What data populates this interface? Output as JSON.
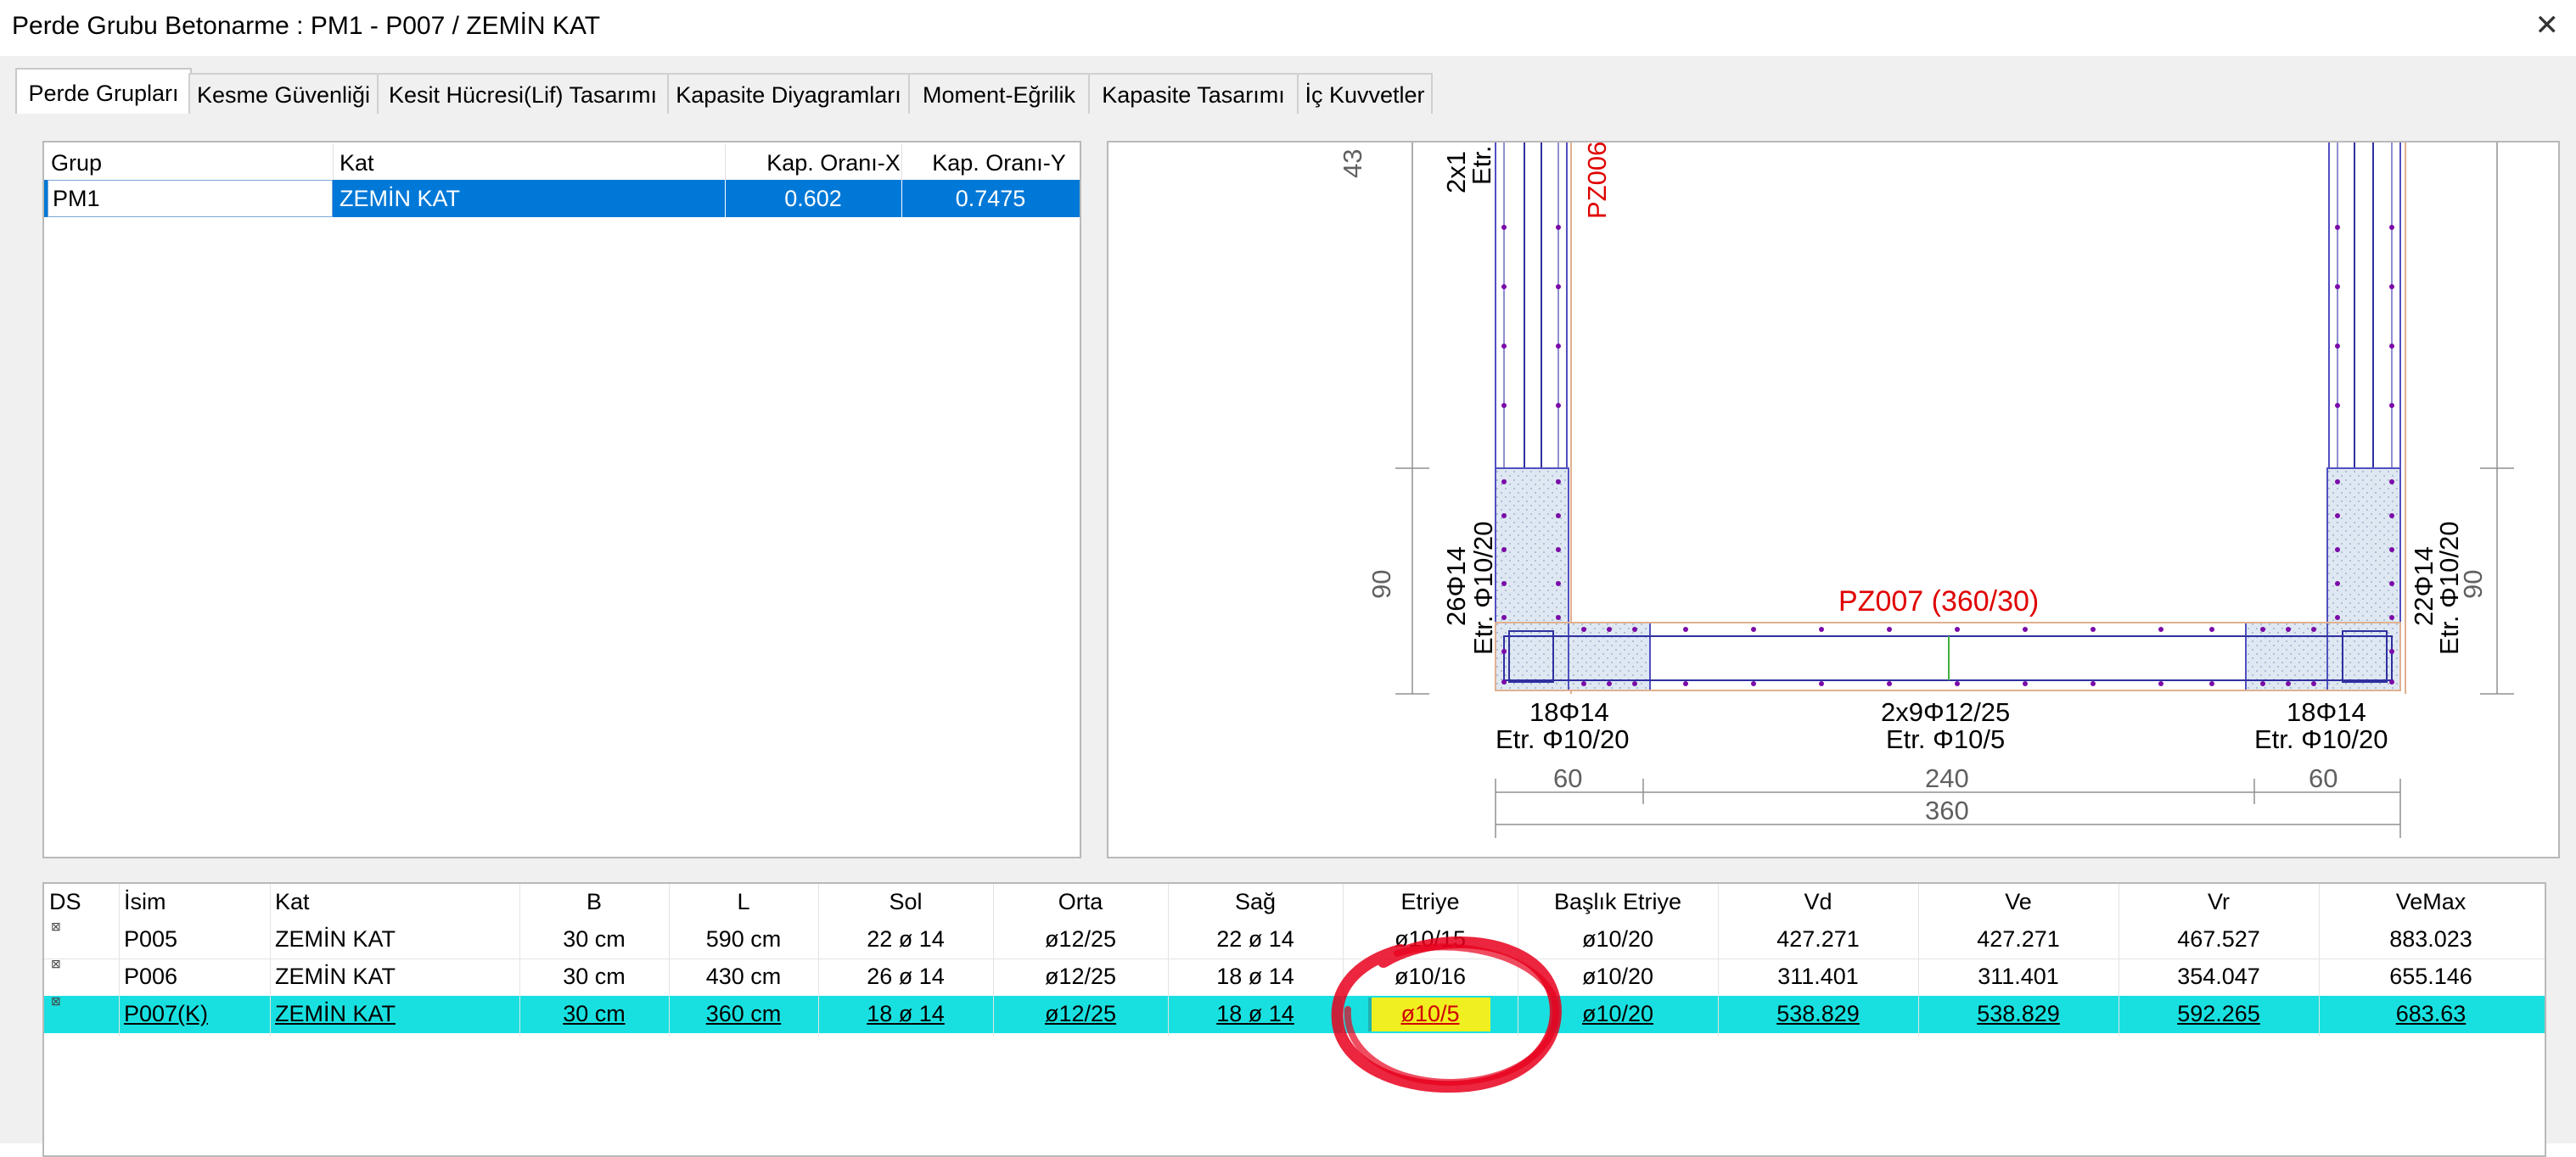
{
  "window": {
    "title": "Perde Grubu Betonarme  :  PM1 - P007 / ZEMİN KAT",
    "close_glyph": "✕"
  },
  "tabs": [
    {
      "label": "Perde Grupları",
      "active": true
    },
    {
      "label": "Kesme Güvenliği"
    },
    {
      "label": "Kesit Hücresi(Lif) Tasarımı"
    },
    {
      "label": "Kapasite Diyagramları"
    },
    {
      "label": "Moment-Eğrilik"
    },
    {
      "label": "Kapasite Tasarımı"
    },
    {
      "label": "İç Kuvvetler"
    }
  ],
  "group_table": {
    "headers": [
      "Grup",
      "Kat",
      "Kap. Oranı-X",
      "Kap. Oranı-Y"
    ],
    "rows": [
      {
        "grup": "PM1",
        "kat": "ZEMİN KAT",
        "kap_x": "0.602",
        "kap_y": "0.7475",
        "selected": true
      }
    ],
    "selected_color": "#0078d7"
  },
  "drawing": {
    "labels": {
      "left_pz": "PZ006",
      "left_top_bars": "2x1",
      "left_top_etr": "Etr.",
      "left_col_bars": "26Φ14",
      "left_col_etr": "Etr. Φ10/20",
      "right_col_bars": "22Φ14",
      "right_col_etr": "Etr. Φ10/20",
      "center_title": "PZ007 (360/30)",
      "bottom_left_bars": "18Φ14",
      "bottom_left_etr": "Etr. Φ10/20",
      "bottom_mid_bars": "2x9Φ12/25",
      "bottom_mid_etr": "Etr. Φ10/5",
      "bottom_right_bars": "18Φ14",
      "bottom_right_etr": "Etr. Φ10/20",
      "dim_top_left": "43",
      "dim_left_90": "90",
      "dim_right_90": "90",
      "dim_60_left": "60",
      "dim_240": "240",
      "dim_60_right": "60",
      "dim_360": "360"
    },
    "colors": {
      "concrete_hatch": "#dfe8f2",
      "rebar": "#7a0aa8",
      "label_red": "#e00000",
      "outline": "#5050c0"
    }
  },
  "wall_table": {
    "headers": [
      "DS",
      "İsim",
      "Kat",
      "B",
      "L",
      "Sol",
      "Orta",
      "Sağ",
      "Etriye",
      "Başlık Etriye",
      "Vd",
      "Ve",
      "Vr",
      "VeMax"
    ],
    "rows": [
      {
        "ds": "⊠",
        "isim": "P005",
        "kat": "ZEMİN KAT",
        "b": "30 cm",
        "l": "590 cm",
        "sol": "22 ø 14",
        "orta": "ø12/25",
        "sag": "22 ø 14",
        "etriye": "ø10/15",
        "baslik": "ø10/20",
        "vd": "427.271",
        "ve": "427.271",
        "vr": "467.527",
        "vemax": "883.023"
      },
      {
        "ds": "⊠",
        "isim": "P006",
        "kat": "ZEMİN KAT",
        "b": "30 cm",
        "l": "430 cm",
        "sol": "26 ø 14",
        "orta": "ø12/25",
        "sag": "18 ø 14",
        "etriye": "ø10/16",
        "baslik": "ø10/20",
        "vd": "311.401",
        "ve": "311.401",
        "vr": "354.047",
        "vemax": "655.146"
      },
      {
        "ds": "⊠",
        "isim": "P007(K)",
        "kat": "ZEMİN KAT",
        "b": "30 cm",
        "l": "360 cm",
        "sol": "18 ø 14",
        "orta": "ø12/25",
        "sag": "18 ø 14",
        "etriye": "ø10/5",
        "baslik": "ø10/20",
        "vd": "538.829",
        "ve": "538.829",
        "vr": "592.265",
        "vemax": "683.63",
        "selected": true
      }
    ],
    "selected_row_color": "#19e0e0",
    "highlight_cell_color": "#f0f020",
    "highlight_text_color": "#d00000",
    "annotation_circle_color": "#e8001c"
  }
}
